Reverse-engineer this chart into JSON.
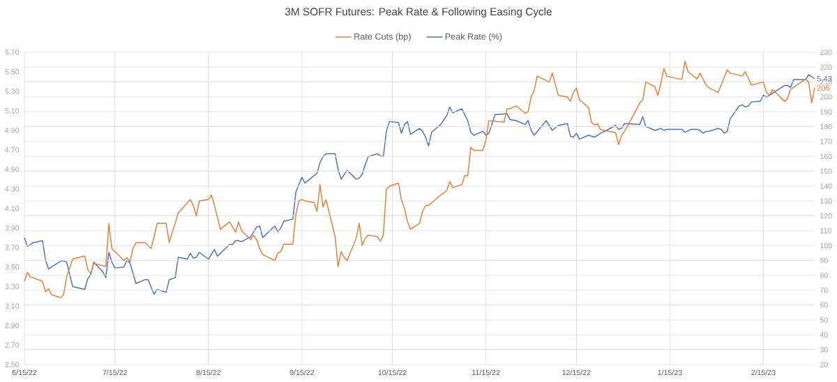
{
  "chart_data": {
    "type": "line",
    "title": "3M SOFR Futures: Peak Rate & Following Easing Cycle",
    "xlim": [
      "2022-06-15",
      "2023-03-04"
    ],
    "xticks": [
      {
        "value": "2022-06-15",
        "label": "6/15/22"
      },
      {
        "value": "2022-07-15",
        "label": "7/15/22"
      },
      {
        "value": "2022-08-15",
        "label": "8/15/22"
      },
      {
        "value": "2022-09-15",
        "label": "9/15/22"
      },
      {
        "value": "2022-10-15",
        "label": "10/15/22"
      },
      {
        "value": "2022-11-15",
        "label": "11/15/22"
      },
      {
        "value": "2022-12-15",
        "label": "12/15/22"
      },
      {
        "value": "2023-01-15",
        "label": "1/15/23"
      },
      {
        "value": "2023-02-15",
        "label": "2/15/23"
      }
    ],
    "ylim": [
      2.5,
      5.7
    ],
    "yticks": [
      {
        "value": 2.5,
        "label": "2.50"
      },
      {
        "value": 2.7,
        "label": "2.70"
      },
      {
        "value": 2.9,
        "label": "2.90"
      },
      {
        "value": 3.1,
        "label": "3.10"
      },
      {
        "value": 3.3,
        "label": "3.30"
      },
      {
        "value": 3.5,
        "label": "3.50"
      },
      {
        "value": 3.7,
        "label": "3.70"
      },
      {
        "value": 3.9,
        "label": "3.90"
      },
      {
        "value": 4.1,
        "label": "4.10"
      },
      {
        "value": 4.3,
        "label": "4.30"
      },
      {
        "value": 4.5,
        "label": "4.50"
      },
      {
        "value": 4.7,
        "label": "4.70"
      },
      {
        "value": 4.9,
        "label": "4.90"
      },
      {
        "value": 5.1,
        "label": "5.10"
      },
      {
        "value": 5.3,
        "label": "5.30"
      },
      {
        "value": 5.5,
        "label": "5.50"
      },
      {
        "value": 5.7,
        "label": "5.70"
      }
    ],
    "y2lim": [
      20,
      230
    ],
    "y2ticks": [
      20,
      30,
      40,
      50,
      60,
      70,
      80,
      90,
      100,
      110,
      120,
      130,
      140,
      150,
      160,
      170,
      180,
      190,
      200,
      210,
      220,
      230
    ],
    "grid": true,
    "legend": "top",
    "series": [
      {
        "name": "Rate Cuts (bp)",
        "color": "#ed7d31",
        "axis": "y2",
        "x": [
          "2022-06-15",
          "2022-06-16",
          "2022-06-17",
          "2022-06-21",
          "2022-06-22",
          "2022-06-23",
          "2022-06-24",
          "2022-06-27",
          "2022-06-28",
          "2022-06-29",
          "2022-07-01",
          "2022-07-05",
          "2022-07-06",
          "2022-07-07",
          "2022-07-08",
          "2022-07-12",
          "2022-07-13",
          "2022-07-14",
          "2022-07-18",
          "2022-07-19",
          "2022-07-20",
          "2022-07-21",
          "2022-07-22",
          "2022-07-25",
          "2022-07-27",
          "2022-07-28",
          "2022-07-29",
          "2022-08-01",
          "2022-08-02",
          "2022-08-03",
          "2022-08-04",
          "2022-08-05",
          "2022-08-09",
          "2022-08-10",
          "2022-08-11",
          "2022-08-12",
          "2022-08-15",
          "2022-08-16",
          "2022-08-17",
          "2022-08-19",
          "2022-08-22",
          "2022-08-24",
          "2022-08-25",
          "2022-08-26",
          "2022-08-29",
          "2022-08-30",
          "2022-08-31",
          "2022-09-01",
          "2022-09-02",
          "2022-09-06",
          "2022-09-07",
          "2022-09-08",
          "2022-09-09",
          "2022-09-12",
          "2022-09-13",
          "2022-09-14",
          "2022-09-15",
          "2022-09-16",
          "2022-09-19",
          "2022-09-20",
          "2022-09-21",
          "2022-09-22",
          "2022-09-23",
          "2022-09-26",
          "2022-09-27",
          "2022-09-28",
          "2022-09-29",
          "2022-09-30",
          "2022-10-03",
          "2022-10-04",
          "2022-10-05",
          "2022-10-06",
          "2022-10-07",
          "2022-10-10",
          "2022-10-11",
          "2022-10-12",
          "2022-10-13",
          "2022-10-14",
          "2022-10-17",
          "2022-10-18",
          "2022-10-19",
          "2022-10-20",
          "2022-10-21",
          "2022-10-24",
          "2022-10-25",
          "2022-10-26",
          "2022-10-27",
          "2022-10-31",
          "2022-11-02",
          "2022-11-03",
          "2022-11-04",
          "2022-11-07",
          "2022-11-08",
          "2022-11-09",
          "2022-11-10",
          "2022-11-11",
          "2022-11-14",
          "2022-11-15",
          "2022-11-16",
          "2022-11-21",
          "2022-11-22",
          "2022-11-23",
          "2022-11-25",
          "2022-11-28",
          "2022-11-29",
          "2022-11-30",
          "2022-12-01",
          "2022-12-02",
          "2022-12-06",
          "2022-12-07",
          "2022-12-09",
          "2022-12-12",
          "2022-12-13",
          "2022-12-14",
          "2022-12-15",
          "2022-12-16",
          "2022-12-19",
          "2022-12-20",
          "2022-12-21",
          "2022-12-22",
          "2022-12-23",
          "2022-12-28",
          "2022-12-29",
          "2022-12-30",
          "2022-12-31",
          "2023-01-03",
          "2023-01-05",
          "2023-01-06",
          "2023-01-07",
          "2023-01-10",
          "2023-01-11",
          "2023-01-12",
          "2023-01-13",
          "2023-01-14",
          "2023-01-18",
          "2023-01-19",
          "2023-01-20",
          "2023-01-21",
          "2023-01-24",
          "2023-01-25",
          "2023-01-27",
          "2023-01-28",
          "2023-01-31",
          "2023-02-03",
          "2023-02-04",
          "2023-02-08",
          "2023-02-09",
          "2023-02-11",
          "2023-02-15",
          "2023-02-16",
          "2023-02-17",
          "2023-02-18",
          "2023-02-22",
          "2023-02-23",
          "2023-02-24",
          "2023-03-01",
          "2023-03-02",
          "2023-03-03",
          "2023-03-04"
        ],
        "values": [
          76,
          82,
          79,
          76,
          69,
          71,
          67,
          65,
          67,
          79,
          91,
          93,
          84,
          81,
          88,
          86,
          115,
          98,
          90,
          92,
          89,
          98,
          102,
          102,
          98,
          106,
          115,
          115,
          102,
          109,
          115,
          122,
          131,
          127,
          120,
          130,
          131,
          134,
          127,
          111,
          116,
          109,
          116,
          110,
          104,
          107,
          104,
          98,
          94,
          90,
          95,
          96,
          101,
          101,
          121,
          130,
          131,
          130,
          129,
          123,
          141,
          126,
          131,
          106,
          86,
          96,
          92,
          90,
          105,
          115,
          100,
          105,
          107,
          106,
          103,
          107,
          138,
          140,
          142,
          131,
          125,
          116,
          111,
          115,
          123,
          127,
          127,
          134,
          137,
          143,
          139,
          141,
          147,
          147,
          166,
          164,
          164,
          171,
          184,
          183,
          192,
          192,
          194,
          189,
          190,
          200,
          204,
          214,
          210,
          216,
          201,
          200,
          197,
          203,
          206,
          198,
          193,
          183,
          181,
          182,
          178,
          176,
          168,
          174,
          177,
          188,
          196,
          198,
          210,
          207,
          201,
          209,
          219,
          214,
          212,
          212,
          224,
          217,
          212,
          216,
          208,
          206,
          203,
          218,
          216,
          214,
          217,
          208,
          210,
          203,
          201,
          205,
          197,
          199,
          205,
          212,
          210,
          196,
          206
        ],
        "value_labels": [
          null,
          null,
          null,
          null,
          null,
          null,
          null,
          null,
          null,
          null,
          null,
          null,
          null,
          null,
          null,
          null,
          null,
          null,
          null,
          null,
          null,
          null,
          null,
          null,
          null,
          null,
          null,
          null,
          null,
          null,
          null,
          null,
          null,
          null,
          null,
          null,
          null,
          null,
          null,
          null,
          null,
          null,
          null,
          null,
          null,
          null,
          null,
          null,
          null,
          null,
          null,
          null,
          null,
          null,
          null,
          null,
          null,
          null,
          null,
          null,
          null,
          null,
          null,
          null,
          null,
          null,
          null,
          null,
          null,
          null,
          null,
          null,
          null,
          null,
          null,
          null,
          null,
          null,
          null,
          null,
          null,
          null,
          null,
          null,
          null,
          null,
          null,
          null,
          null,
          null,
          null,
          null,
          null,
          null,
          null,
          null,
          null,
          null,
          null,
          null,
          null,
          null,
          null,
          null,
          null,
          null,
          null,
          null,
          null,
          null,
          null,
          null,
          null,
          null,
          null,
          null,
          null,
          null,
          null,
          null,
          null,
          null,
          null,
          null,
          null,
          null,
          null,
          null,
          null,
          null,
          null,
          null,
          null,
          null,
          null,
          null,
          null,
          null,
          null,
          null,
          null,
          null,
          null,
          null,
          null,
          null,
          null,
          null,
          null,
          null,
          null,
          null,
          null,
          null,
          null,
          null,
          null,
          null,
          "206"
        ]
      },
      {
        "name": "Peak Rate (%)",
        "color": "#4472c4",
        "x": [
          "2022-06-15",
          "2022-06-16",
          "2022-06-18",
          "2022-06-21",
          "2022-06-22",
          "2022-06-23",
          "2022-06-27",
          "2022-06-28",
          "2022-06-29",
          "2022-07-01",
          "2022-07-05",
          "2022-07-06",
          "2022-07-07",
          "2022-07-08",
          "2022-07-11",
          "2022-07-12",
          "2022-07-13",
          "2022-07-14",
          "2022-07-15",
          "2022-07-18",
          "2022-07-19",
          "2022-07-20",
          "2022-07-22",
          "2022-07-25",
          "2022-07-26",
          "2022-07-28",
          "2022-07-29",
          "2022-08-01",
          "2022-08-02",
          "2022-08-04",
          "2022-08-05",
          "2022-08-08",
          "2022-08-09",
          "2022-08-10",
          "2022-08-11",
          "2022-08-12",
          "2022-08-15",
          "2022-08-17",
          "2022-08-18",
          "2022-08-22",
          "2022-08-23",
          "2022-08-24",
          "2022-08-25",
          "2022-08-26",
          "2022-08-29",
          "2022-08-31",
          "2022-09-01",
          "2022-09-02",
          "2022-09-06",
          "2022-09-07",
          "2022-09-08",
          "2022-09-09",
          "2022-09-12",
          "2022-09-13",
          "2022-09-15",
          "2022-09-16",
          "2022-09-20",
          "2022-09-21",
          "2022-09-22",
          "2022-09-23",
          "2022-09-26",
          "2022-09-27",
          "2022-09-28",
          "2022-09-30",
          "2022-10-03",
          "2022-10-04",
          "2022-10-05",
          "2022-10-06",
          "2022-10-07",
          "2022-10-10",
          "2022-10-11",
          "2022-10-12",
          "2022-10-13",
          "2022-10-14",
          "2022-10-17",
          "2022-10-18",
          "2022-10-19",
          "2022-10-20",
          "2022-10-21",
          "2022-10-24",
          "2022-10-25",
          "2022-10-26",
          "2022-10-27",
          "2022-10-28",
          "2022-10-31",
          "2022-11-02",
          "2022-11-03",
          "2022-11-04",
          "2022-11-07",
          "2022-11-09",
          "2022-11-10",
          "2022-11-11",
          "2022-11-14",
          "2022-11-15",
          "2022-11-16",
          "2022-11-18",
          "2022-11-22",
          "2022-11-23",
          "2022-11-25",
          "2022-11-28",
          "2022-11-29",
          "2022-11-30",
          "2022-12-01",
          "2022-12-05",
          "2022-12-07",
          "2022-12-09",
          "2022-12-12",
          "2022-12-13",
          "2022-12-14",
          "2022-12-15",
          "2022-12-16",
          "2022-12-19",
          "2022-12-21",
          "2022-12-23",
          "2022-12-25",
          "2022-12-28",
          "2022-12-29",
          "2022-12-30",
          "2022-12-31",
          "2023-01-05",
          "2023-01-06",
          "2023-01-07",
          "2023-01-10",
          "2023-01-12",
          "2023-01-13",
          "2023-01-14",
          "2023-01-19",
          "2023-01-20",
          "2023-01-22",
          "2023-01-24",
          "2023-01-25",
          "2023-01-26",
          "2023-01-27",
          "2023-01-28",
          "2023-01-31",
          "2023-02-01",
          "2023-02-02",
          "2023-02-03",
          "2023-02-04",
          "2023-02-07",
          "2023-02-08",
          "2023-02-09",
          "2023-02-10",
          "2023-02-11",
          "2023-02-14",
          "2023-02-15",
          "2023-02-16",
          "2023-02-18",
          "2023-02-22",
          "2023-02-23",
          "2023-02-24",
          "2023-02-25",
          "2023-03-01",
          "2023-03-02",
          "2023-03-03",
          "2023-03-04"
        ],
        "values": [
          3.8,
          3.71,
          3.75,
          3.77,
          3.57,
          3.48,
          3.56,
          3.56,
          3.55,
          3.3,
          3.27,
          3.38,
          3.42,
          3.55,
          3.45,
          3.39,
          3.65,
          3.55,
          3.49,
          3.5,
          3.57,
          3.54,
          3.33,
          3.37,
          3.37,
          3.22,
          3.27,
          3.24,
          3.37,
          3.39,
          3.6,
          3.58,
          3.64,
          3.59,
          3.6,
          3.65,
          3.58,
          3.68,
          3.61,
          3.73,
          3.73,
          3.77,
          3.77,
          3.76,
          3.81,
          3.91,
          3.92,
          3.8,
          3.92,
          3.86,
          3.9,
          3.97,
          3.99,
          4.27,
          4.42,
          4.36,
          4.46,
          4.57,
          4.63,
          4.66,
          4.66,
          4.5,
          4.4,
          4.49,
          4.4,
          4.41,
          4.45,
          4.55,
          4.63,
          4.66,
          4.64,
          4.63,
          4.89,
          4.99,
          4.98,
          4.87,
          4.96,
          4.99,
          4.86,
          4.92,
          4.89,
          4.83,
          4.74,
          4.88,
          4.96,
          5.05,
          5.14,
          5.08,
          5.12,
          5.0,
          4.88,
          4.85,
          4.89,
          4.85,
          4.87,
          5.06,
          5.07,
          5.01,
          5.0,
          4.96,
          5.0,
          4.9,
          4.85,
          5.0,
          4.9,
          4.95,
          4.97,
          4.84,
          4.83,
          4.87,
          4.81,
          4.85,
          4.83,
          4.87,
          4.9,
          4.95,
          4.91,
          4.92,
          4.97,
          4.96,
          5.04,
          4.94,
          4.9,
          4.92,
          4.9,
          4.91,
          4.91,
          4.88,
          4.91,
          4.91,
          4.9,
          4.87,
          4.89,
          4.89,
          4.92,
          4.91,
          4.87,
          4.89,
          5.02,
          5.15,
          5.16,
          5.14,
          5.15,
          5.19,
          5.2,
          5.26,
          5.24,
          5.28,
          5.36,
          5.36,
          5.34,
          5.42,
          5.42,
          5.47,
          5.45,
          5.43
        ],
        "value_labels": [
          null,
          null,
          null,
          null,
          null,
          null,
          null,
          null,
          null,
          null,
          null,
          null,
          null,
          null,
          null,
          null,
          null,
          null,
          null,
          null,
          null,
          null,
          null,
          null,
          null,
          null,
          null,
          null,
          null,
          null,
          null,
          null,
          null,
          null,
          null,
          null,
          null,
          null,
          null,
          null,
          null,
          null,
          null,
          null,
          null,
          null,
          null,
          null,
          null,
          null,
          null,
          null,
          null,
          null,
          null,
          null,
          null,
          null,
          null,
          null,
          null,
          null,
          null,
          null,
          null,
          null,
          null,
          null,
          null,
          null,
          null,
          null,
          null,
          null,
          null,
          null,
          null,
          null,
          null,
          null,
          null,
          null,
          null,
          null,
          null,
          null,
          null,
          null,
          null,
          null,
          null,
          null,
          null,
          null,
          null,
          null,
          null,
          null,
          null,
          null,
          null,
          null,
          null,
          null,
          null,
          null,
          null,
          null,
          null,
          null,
          null,
          null,
          null,
          null,
          null,
          null,
          null,
          null,
          null,
          null,
          null,
          null,
          null,
          null,
          null,
          null,
          null,
          null,
          null,
          null,
          null,
          null,
          null,
          null,
          null,
          null,
          null,
          null,
          null,
          null,
          null,
          null,
          null,
          null,
          null,
          null,
          null,
          null,
          null,
          null,
          null,
          null,
          null,
          null,
          null,
          "5.43"
        ]
      }
    ]
  }
}
